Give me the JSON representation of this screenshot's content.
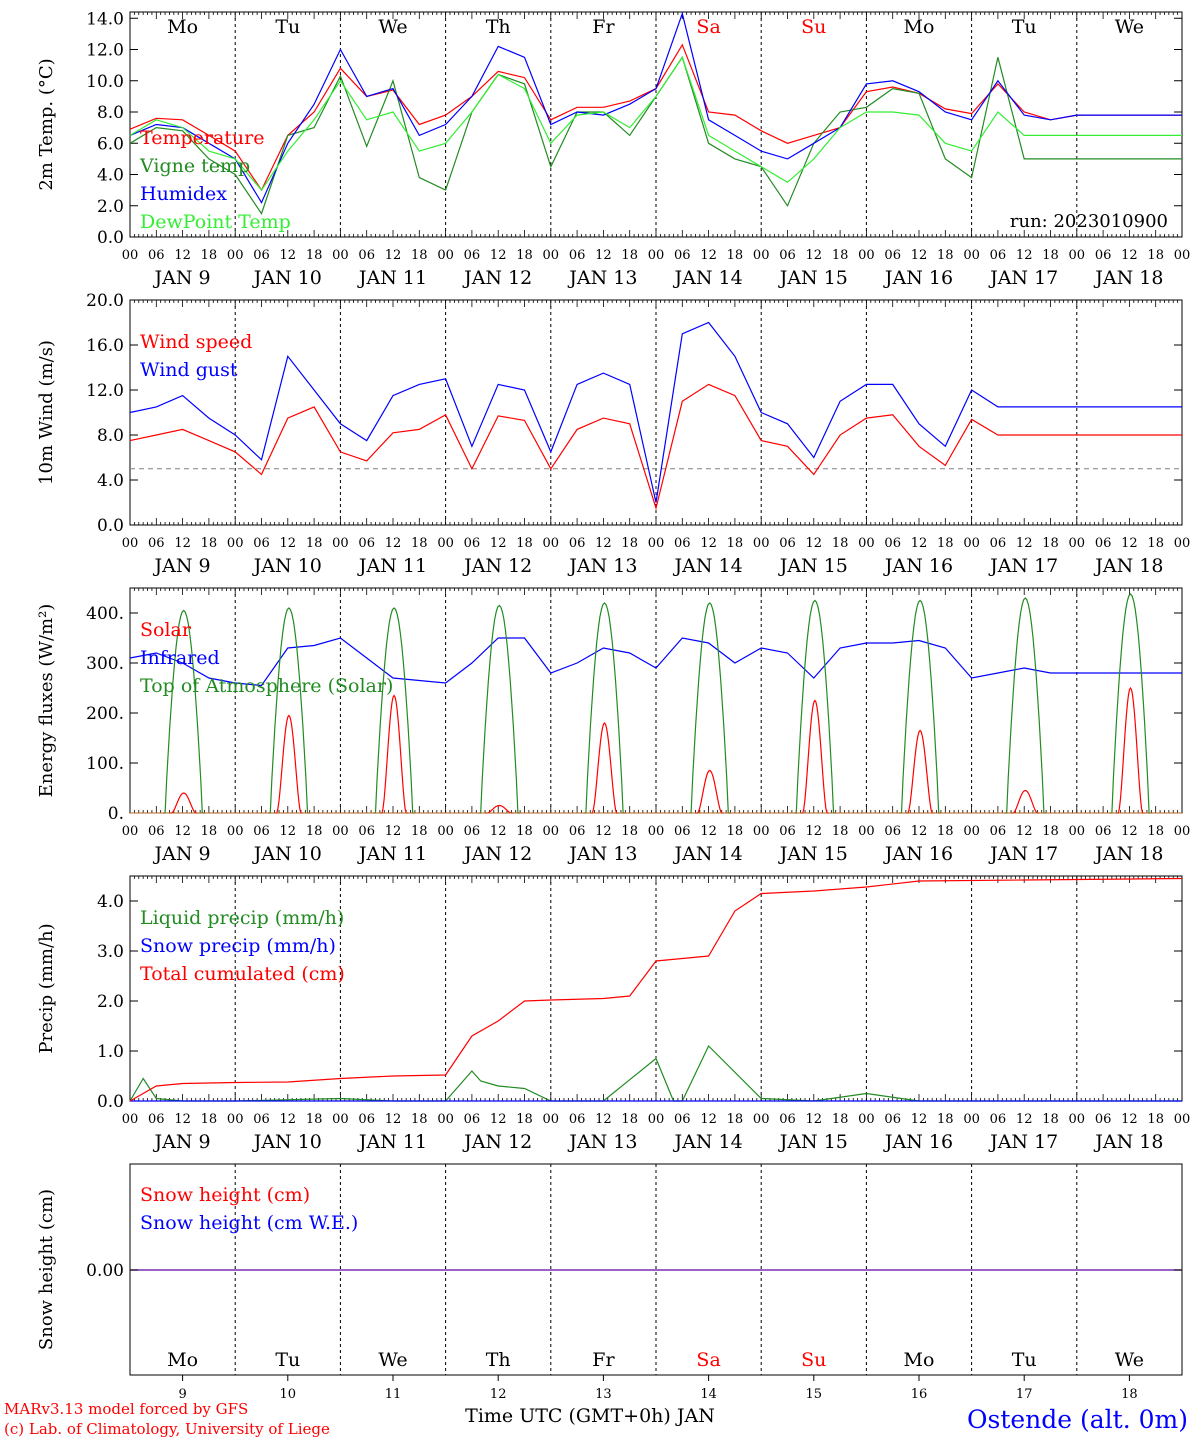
{
  "colors": {
    "red": "#ff0000",
    "green": "#228b22",
    "blue": "#0000ff",
    "lightgreen": "#33ee33",
    "purple": "#7a2fb0",
    "black": "#000000",
    "grey": "#808080"
  },
  "run_label": "run: 2023010900",
  "day_names": [
    {
      "label": "Mo",
      "color": "#000000"
    },
    {
      "label": "Tu",
      "color": "#000000"
    },
    {
      "label": "We",
      "color": "#000000"
    },
    {
      "label": "Th",
      "color": "#000000"
    },
    {
      "label": "Fr",
      "color": "#000000"
    },
    {
      "label": "Sa",
      "color": "#ff0000"
    },
    {
      "label": "Su",
      "color": "#ff0000"
    },
    {
      "label": "Mo",
      "color": "#000000"
    },
    {
      "label": "Tu",
      "color": "#000000"
    },
    {
      "label": "We",
      "color": "#000000"
    }
  ],
  "date_labels": [
    "JAN  9",
    "JAN 10",
    "JAN 11",
    "JAN 12",
    "JAN 13",
    "JAN 14",
    "JAN 15",
    "JAN 16",
    "JAN 17",
    "JAN 18"
  ],
  "hour_ticks": [
    "00",
    "06",
    "12",
    "18"
  ],
  "day_numbers": [
    "9",
    "10",
    "11",
    "12",
    "13",
    "14",
    "15",
    "16",
    "17",
    "18"
  ],
  "x_axis_title": "Time UTC (GMT+0h) JAN",
  "footer": {
    "model": "MARv3.13 model forced by GFS",
    "credit": "(c) Lab. of Climatology, University of Liege",
    "station": "Ostende (alt. 0m)"
  },
  "chart_data": [
    {
      "type": "line",
      "ylabel": "2m Temp. (°C)",
      "ylim": [
        0,
        14.4
      ],
      "yticks": [
        "0.0",
        "2.0",
        "4.0",
        "6.0",
        "8.0",
        "10.0",
        "12.0",
        "14.0"
      ],
      "x_unit": "hours since JAN 9 00 UTC",
      "series": [
        {
          "name": "Temperature",
          "color": "#ff0000",
          "x": [
            0,
            6,
            12,
            18,
            24,
            30,
            36,
            42,
            48,
            54,
            60,
            66,
            72,
            78,
            84,
            90,
            96,
            102,
            108,
            114,
            120,
            126,
            132,
            138,
            144,
            150,
            156,
            162,
            168,
            174,
            180,
            186,
            192,
            198,
            204,
            210,
            216,
            222,
            228,
            234,
            240
          ],
          "y": [
            6.9,
            7.6,
            7.5,
            6.5,
            5.5,
            3.0,
            6.5,
            8.0,
            10.8,
            9.0,
            9.4,
            7.2,
            7.8,
            9.0,
            10.6,
            10.2,
            7.5,
            8.3,
            8.3,
            8.7,
            9.5,
            12.3,
            8.0,
            7.8,
            6.8,
            6.0,
            6.5,
            7.0,
            9.3,
            9.6,
            9.2,
            8.2,
            7.9,
            9.8,
            8.0,
            7.5,
            7.8,
            7.8,
            7.8,
            7.8,
            7.8
          ]
        },
        {
          "name": "Vigne temp",
          "color": "#228b22",
          "x": [
            0,
            6,
            12,
            18,
            24,
            30,
            36,
            42,
            48,
            54,
            60,
            66,
            72,
            78,
            84,
            90,
            96,
            102,
            108,
            114,
            120,
            126,
            132,
            138,
            144,
            150,
            156,
            162,
            168,
            174,
            180,
            186,
            192,
            198,
            204,
            210,
            216,
            222,
            228,
            234,
            240
          ],
          "y": [
            6.0,
            7.0,
            6.8,
            5.0,
            4.0,
            1.5,
            6.5,
            7.0,
            10.3,
            5.8,
            10.0,
            3.8,
            3.0,
            8.0,
            10.4,
            9.8,
            4.5,
            8.0,
            8.0,
            6.5,
            9.0,
            11.5,
            6.0,
            5.0,
            4.5,
            2.0,
            6.0,
            8.0,
            8.3,
            9.5,
            9.2,
            5.0,
            3.8,
            11.5,
            5.0,
            5.0,
            5.0,
            5.0,
            5.0,
            5.0,
            5.0
          ]
        },
        {
          "name": "Humidex",
          "color": "#0000ff",
          "x": [
            0,
            6,
            12,
            18,
            24,
            30,
            36,
            42,
            48,
            54,
            60,
            66,
            72,
            78,
            84,
            90,
            96,
            102,
            108,
            114,
            120,
            126,
            132,
            138,
            144,
            150,
            156,
            162,
            168,
            174,
            180,
            186,
            192,
            198,
            204,
            210,
            216,
            222,
            228,
            234,
            240
          ],
          "y": [
            6.5,
            7.2,
            7.0,
            6.0,
            5.0,
            2.2,
            6.0,
            8.5,
            12.0,
            9.0,
            9.5,
            6.5,
            7.2,
            9.0,
            12.2,
            11.5,
            7.2,
            8.0,
            7.8,
            8.5,
            9.5,
            14.3,
            7.5,
            6.5,
            5.5,
            5.0,
            6.0,
            7.0,
            9.8,
            10.0,
            9.3,
            8.0,
            7.5,
            10.0,
            7.8,
            7.5,
            7.8,
            7.8,
            7.8,
            7.8,
            7.8
          ]
        },
        {
          "name": "DewPoint Temp",
          "color": "#33ee33",
          "x": [
            0,
            6,
            12,
            18,
            24,
            30,
            36,
            42,
            48,
            54,
            60,
            66,
            72,
            78,
            84,
            90,
            96,
            102,
            108,
            114,
            120,
            126,
            132,
            138,
            144,
            150,
            156,
            162,
            168,
            174,
            180,
            186,
            192,
            198,
            204,
            210,
            216,
            222,
            228,
            234,
            240
          ],
          "y": [
            6.5,
            7.5,
            7.0,
            5.5,
            5.0,
            3.0,
            5.5,
            7.5,
            10.0,
            7.5,
            8.0,
            5.5,
            6.0,
            8.0,
            10.4,
            9.5,
            6.0,
            7.8,
            8.0,
            7.0,
            9.0,
            11.5,
            6.5,
            5.5,
            4.5,
            3.5,
            5.0,
            7.0,
            8.0,
            8.0,
            7.8,
            6.0,
            5.5,
            8.0,
            6.5,
            6.5,
            6.5,
            6.5,
            6.5,
            6.5,
            6.5
          ]
        }
      ]
    },
    {
      "type": "line",
      "ylabel": "10m Wind (m/s)",
      "ylim": [
        0,
        20
      ],
      "yticks": [
        "0.0",
        "4.0",
        "8.0",
        "12.0",
        "16.0",
        "20.0"
      ],
      "reference_line": 5.0,
      "series": [
        {
          "name": "Wind speed",
          "color": "#ff0000",
          "x": [
            0,
            6,
            12,
            18,
            24,
            30,
            36,
            42,
            48,
            54,
            60,
            66,
            72,
            78,
            84,
            90,
            96,
            102,
            108,
            114,
            120,
            126,
            132,
            138,
            144,
            150,
            156,
            162,
            168,
            174,
            180,
            186,
            192,
            198,
            204,
            210,
            216,
            222,
            228,
            234,
            240
          ],
          "y": [
            7.5,
            8.0,
            8.5,
            7.5,
            6.5,
            4.5,
            9.5,
            10.5,
            6.5,
            5.7,
            8.2,
            8.5,
            9.8,
            5.0,
            9.7,
            9.3,
            5.0,
            8.5,
            9.5,
            9.0,
            1.5,
            11.0,
            12.5,
            11.5,
            7.5,
            7.0,
            4.5,
            8.0,
            9.5,
            9.8,
            7.0,
            5.3,
            9.4,
            8.0,
            8.0,
            8.0,
            8.0,
            8.0,
            8.0,
            8.0,
            8.0
          ]
        },
        {
          "name": "Wind gust",
          "color": "#0000ff",
          "x": [
            0,
            6,
            12,
            18,
            24,
            30,
            36,
            42,
            48,
            54,
            60,
            66,
            72,
            78,
            84,
            90,
            96,
            102,
            108,
            114,
            120,
            126,
            132,
            138,
            144,
            150,
            156,
            162,
            168,
            174,
            180,
            186,
            192,
            198,
            204,
            210,
            216,
            222,
            228,
            234,
            240
          ],
          "y": [
            10.0,
            10.5,
            11.5,
            9.5,
            8.0,
            5.8,
            15.0,
            12.0,
            9.0,
            7.5,
            11.5,
            12.5,
            13.0,
            7.0,
            12.5,
            12.0,
            6.5,
            12.5,
            13.5,
            12.5,
            2.0,
            17.0,
            18.0,
            15.0,
            10.0,
            9.0,
            6.0,
            11.0,
            12.5,
            12.5,
            9.0,
            7.0,
            12.0,
            10.5,
            10.5,
            10.5,
            10.5,
            10.5,
            10.5,
            10.5,
            10.5
          ]
        }
      ]
    },
    {
      "type": "line",
      "ylabel": "Energy fluxes (W/m²)",
      "ylim": [
        0,
        450
      ],
      "yticks": [
        "0.",
        "100.",
        "200.",
        "300.",
        "400."
      ],
      "series": [
        {
          "name": "Solar",
          "color": "#ff0000",
          "daily_peak": [
            40,
            195,
            235,
            15,
            180,
            85,
            225,
            165,
            45,
            250
          ]
        },
        {
          "name": "Infrared",
          "color": "#0000ff",
          "x": [
            0,
            6,
            12,
            18,
            24,
            30,
            36,
            42,
            48,
            54,
            60,
            66,
            72,
            78,
            84,
            90,
            96,
            102,
            108,
            114,
            120,
            126,
            132,
            138,
            144,
            150,
            156,
            162,
            168,
            174,
            180,
            186,
            192,
            198,
            204,
            210,
            216,
            222,
            228,
            234,
            240
          ],
          "y": [
            310,
            320,
            300,
            270,
            260,
            255,
            330,
            335,
            350,
            310,
            270,
            265,
            260,
            300,
            350,
            350,
            280,
            300,
            330,
            320,
            290,
            350,
            340,
            300,
            330,
            320,
            270,
            330,
            340,
            340,
            345,
            330,
            270,
            280,
            290,
            280,
            280,
            280,
            280,
            280,
            280
          ]
        },
        {
          "name": "Top of Atmosphere (Solar)",
          "color": "#228b22",
          "daily_peak": [
            405,
            410,
            410,
            415,
            420,
            420,
            425,
            425,
            430,
            438
          ]
        }
      ]
    },
    {
      "type": "line",
      "ylabel": "Precip (mm/h)",
      "ylim": [
        0,
        4.5
      ],
      "yticks": [
        "0.0",
        "1.0",
        "2.0",
        "3.0",
        "4.0"
      ],
      "series": [
        {
          "name": "Liquid precip (mm/h)",
          "color": "#228b22",
          "x": [
            0,
            3,
            6,
            12,
            24,
            48,
            60,
            72,
            78,
            80,
            84,
            90,
            96,
            108,
            120,
            124,
            126,
            132,
            144,
            156,
            168,
            180,
            192,
            216,
            240
          ],
          "y": [
            0,
            0.45,
            0.05,
            0,
            0,
            0.05,
            0,
            0,
            0.6,
            0.4,
            0.3,
            0.25,
            0,
            0,
            0.85,
            0,
            0,
            1.1,
            0.05,
            0,
            0.15,
            0,
            0,
            0,
            0
          ]
        },
        {
          "name": "Snow precip (mm/h)",
          "color": "#0000ff",
          "x": [
            0,
            240
          ],
          "y": [
            0,
            0
          ]
        },
        {
          "name": "Total cumulated (cm)",
          "color": "#ff0000",
          "x": [
            0,
            6,
            12,
            24,
            36,
            48,
            60,
            72,
            78,
            84,
            90,
            96,
            108,
            114,
            120,
            126,
            132,
            138,
            144,
            156,
            168,
            180,
            204,
            240
          ],
          "y": [
            0,
            0.3,
            0.35,
            0.37,
            0.38,
            0.45,
            0.5,
            0.52,
            1.3,
            1.6,
            2.0,
            2.02,
            2.05,
            2.1,
            2.8,
            2.85,
            2.9,
            3.8,
            4.15,
            4.2,
            4.28,
            4.4,
            4.42,
            4.45
          ]
        }
      ]
    },
    {
      "type": "line",
      "ylabel": "Snow height (cm)",
      "yticks": [
        "0.00"
      ],
      "series": [
        {
          "name": "Snow height (cm)",
          "color": "#ff0000",
          "x": [
            0,
            240
          ],
          "y": [
            0,
            0
          ]
        },
        {
          "name": "Snow height (cm W.E.)",
          "color": "#0000ff",
          "x": [
            0,
            240
          ],
          "y": [
            0,
            0
          ]
        }
      ]
    }
  ]
}
